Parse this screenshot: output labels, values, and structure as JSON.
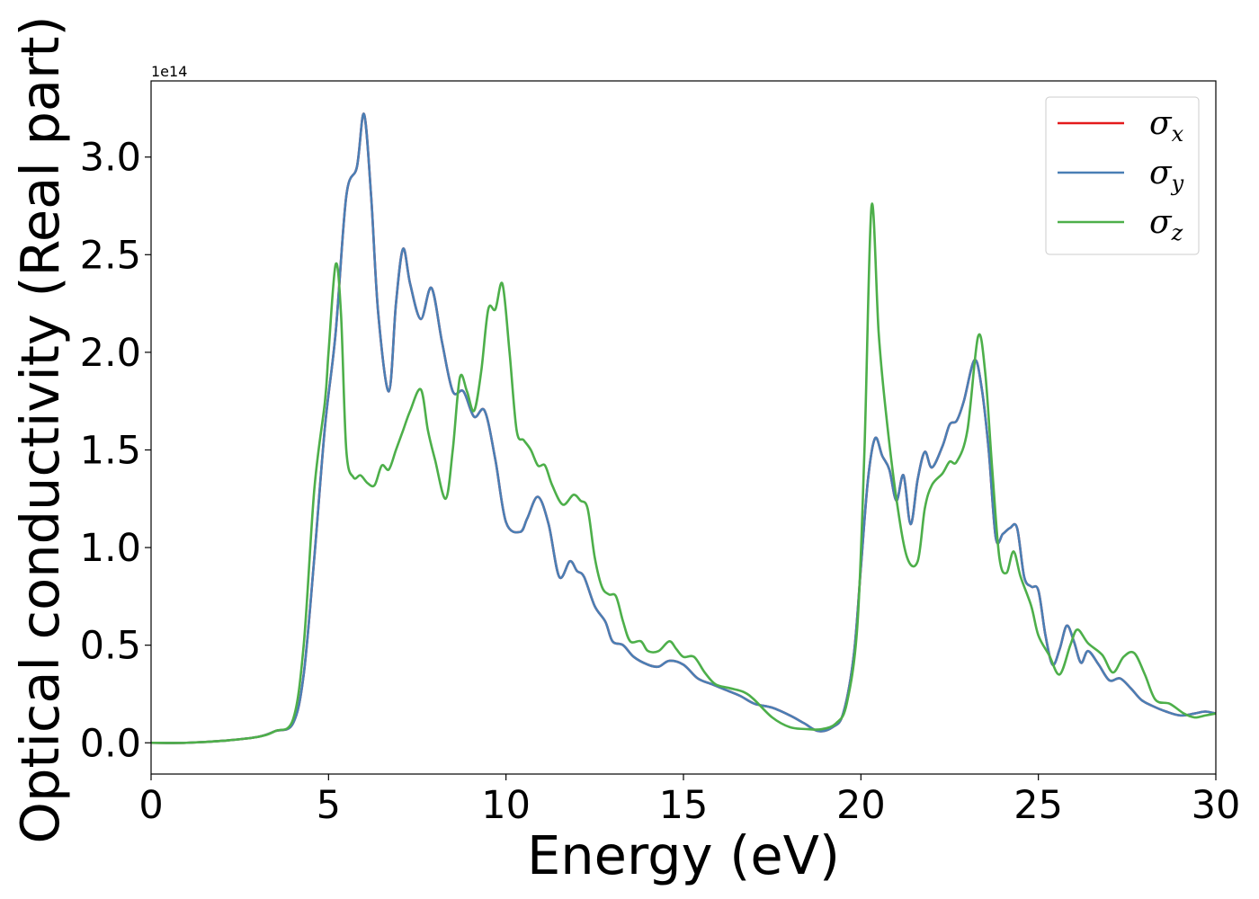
{
  "chart_data": {
    "type": "line",
    "xlabel": "Energy (eV)",
    "ylabel": "Optical conductivity (Real part)",
    "y_offset_label": "1e14",
    "xlim": [
      0,
      30
    ],
    "ylim": [
      -0.16,
      3.39
    ],
    "xticks": [
      0,
      5,
      10,
      15,
      20,
      25,
      30
    ],
    "xtick_labels": [
      "0",
      "5",
      "10",
      "15",
      "20",
      "25",
      "30"
    ],
    "yticks": [
      0.0,
      0.5,
      1.0,
      1.5,
      2.0,
      2.5,
      3.0
    ],
    "ytick_labels": [
      "0.0",
      "0.5",
      "1.0",
      "1.5",
      "2.0",
      "2.5",
      "3.0"
    ],
    "grid": false,
    "legend_position": "top-right",
    "series": [
      {
        "name": "σx",
        "symbol": "σ",
        "subscript": "x",
        "color": "#e41a1c",
        "x": [
          0,
          1,
          2,
          3,
          3.5,
          4,
          4.3,
          4.6,
          4.9,
          5.2,
          5.5,
          5.8,
          6.0,
          6.2,
          6.4,
          6.7,
          6.9,
          7.1,
          7.3,
          7.6,
          7.9,
          8.2,
          8.5,
          8.8,
          9.1,
          9.4,
          9.7,
          10.0,
          10.4,
          10.6,
          10.9,
          11.2,
          11.5,
          11.8,
          12.0,
          12.2,
          12.5,
          12.8,
          13.0,
          13.3,
          13.6,
          14.0,
          14.3,
          14.6,
          15.0,
          15.4,
          15.8,
          16.2,
          16.6,
          17.0,
          17.5,
          18.0,
          18.4,
          18.8,
          19.2,
          19.5,
          19.8,
          20.0,
          20.2,
          20.4,
          20.6,
          20.8,
          21.0,
          21.2,
          21.4,
          21.6,
          21.8,
          22.0,
          22.3,
          22.5,
          22.7,
          22.9,
          23.2,
          23.4,
          23.6,
          23.8,
          24.0,
          24.2,
          24.4,
          24.6,
          24.8,
          25.0,
          25.2,
          25.4,
          25.6,
          25.8,
          26.0,
          26.2,
          26.4,
          26.7,
          27.0,
          27.3,
          27.6,
          27.9,
          28.2,
          28.6,
          29.0,
          29.4,
          29.7,
          30.0
        ],
        "y": [
          0.0,
          0.0,
          0.01,
          0.03,
          0.06,
          0.1,
          0.35,
          0.95,
          1.62,
          2.1,
          2.8,
          2.95,
          3.22,
          2.8,
          2.2,
          1.8,
          2.25,
          2.53,
          2.35,
          2.17,
          2.33,
          2.05,
          1.8,
          1.8,
          1.67,
          1.7,
          1.45,
          1.13,
          1.08,
          1.15,
          1.26,
          1.12,
          0.85,
          0.93,
          0.88,
          0.85,
          0.7,
          0.62,
          0.52,
          0.5,
          0.44,
          0.4,
          0.39,
          0.42,
          0.4,
          0.33,
          0.3,
          0.27,
          0.24,
          0.2,
          0.18,
          0.14,
          0.1,
          0.06,
          0.08,
          0.15,
          0.45,
          0.9,
          1.35,
          1.56,
          1.47,
          1.4,
          1.24,
          1.37,
          1.12,
          1.35,
          1.49,
          1.41,
          1.52,
          1.63,
          1.65,
          1.75,
          1.96,
          1.82,
          1.5,
          1.05,
          1.07,
          1.1,
          1.1,
          0.85,
          0.8,
          0.78,
          0.55,
          0.4,
          0.48,
          0.6,
          0.52,
          0.41,
          0.47,
          0.4,
          0.32,
          0.33,
          0.28,
          0.22,
          0.19,
          0.16,
          0.14,
          0.15,
          0.16,
          0.15
        ]
      },
      {
        "name": "σy",
        "symbol": "σ",
        "subscript": "y",
        "color": "#4a7fb5",
        "x": [
          0,
          1,
          2,
          3,
          3.5,
          4,
          4.3,
          4.6,
          4.9,
          5.2,
          5.5,
          5.8,
          6.0,
          6.2,
          6.4,
          6.7,
          6.9,
          7.1,
          7.3,
          7.6,
          7.9,
          8.2,
          8.5,
          8.8,
          9.1,
          9.4,
          9.7,
          10.0,
          10.4,
          10.6,
          10.9,
          11.2,
          11.5,
          11.8,
          12.0,
          12.2,
          12.5,
          12.8,
          13.0,
          13.3,
          13.6,
          14.0,
          14.3,
          14.6,
          15.0,
          15.4,
          15.8,
          16.2,
          16.6,
          17.0,
          17.5,
          18.0,
          18.4,
          18.8,
          19.2,
          19.5,
          19.8,
          20.0,
          20.2,
          20.4,
          20.6,
          20.8,
          21.0,
          21.2,
          21.4,
          21.6,
          21.8,
          22.0,
          22.3,
          22.5,
          22.7,
          22.9,
          23.2,
          23.4,
          23.6,
          23.8,
          24.0,
          24.2,
          24.4,
          24.6,
          24.8,
          25.0,
          25.2,
          25.4,
          25.6,
          25.8,
          26.0,
          26.2,
          26.4,
          26.7,
          27.0,
          27.3,
          27.6,
          27.9,
          28.2,
          28.6,
          29.0,
          29.4,
          29.7,
          30.0
        ],
        "y": [
          0.0,
          0.0,
          0.01,
          0.03,
          0.06,
          0.1,
          0.35,
          0.95,
          1.62,
          2.1,
          2.8,
          2.95,
          3.22,
          2.8,
          2.2,
          1.8,
          2.25,
          2.53,
          2.35,
          2.17,
          2.33,
          2.05,
          1.8,
          1.8,
          1.67,
          1.7,
          1.45,
          1.13,
          1.08,
          1.15,
          1.26,
          1.12,
          0.85,
          0.93,
          0.88,
          0.85,
          0.7,
          0.62,
          0.52,
          0.5,
          0.44,
          0.4,
          0.39,
          0.42,
          0.4,
          0.33,
          0.3,
          0.27,
          0.24,
          0.2,
          0.18,
          0.14,
          0.1,
          0.06,
          0.08,
          0.15,
          0.45,
          0.9,
          1.35,
          1.56,
          1.47,
          1.4,
          1.24,
          1.37,
          1.12,
          1.35,
          1.49,
          1.41,
          1.52,
          1.63,
          1.65,
          1.75,
          1.96,
          1.82,
          1.5,
          1.05,
          1.07,
          1.1,
          1.1,
          0.85,
          0.8,
          0.78,
          0.55,
          0.4,
          0.48,
          0.6,
          0.52,
          0.41,
          0.47,
          0.4,
          0.32,
          0.33,
          0.28,
          0.22,
          0.19,
          0.16,
          0.14,
          0.15,
          0.16,
          0.15
        ]
      },
      {
        "name": "σz",
        "symbol": "σ",
        "subscript": "z",
        "color": "#4daf4a",
        "x": [
          0,
          1,
          2,
          3,
          3.5,
          4,
          4.3,
          4.6,
          4.9,
          5.0,
          5.2,
          5.35,
          5.5,
          5.7,
          5.9,
          6.1,
          6.3,
          6.5,
          6.7,
          6.9,
          7.1,
          7.3,
          7.6,
          7.8,
          8.0,
          8.3,
          8.5,
          8.7,
          8.9,
          9.1,
          9.3,
          9.5,
          9.7,
          9.9,
          10.1,
          10.3,
          10.5,
          10.7,
          10.9,
          11.1,
          11.3,
          11.6,
          11.9,
          12.1,
          12.3,
          12.5,
          12.7,
          12.9,
          13.1,
          13.3,
          13.5,
          13.8,
          14.0,
          14.3,
          14.6,
          14.8,
          15.0,
          15.3,
          15.6,
          15.9,
          16.3,
          16.7,
          17.0,
          17.5,
          18.0,
          18.5,
          18.9,
          19.3,
          19.6,
          19.9,
          20.1,
          20.3,
          20.5,
          20.7,
          21.0,
          21.3,
          21.6,
          21.8,
          22.0,
          22.3,
          22.5,
          22.7,
          23.0,
          23.3,
          23.5,
          23.7,
          23.9,
          24.1,
          24.3,
          24.5,
          24.8,
          25.0,
          25.3,
          25.6,
          25.9,
          26.1,
          26.4,
          26.8,
          27.1,
          27.4,
          27.7,
          28.0,
          28.3,
          28.7,
          29.1,
          29.4,
          29.7,
          30.0
        ],
        "y": [
          0.0,
          0.0,
          0.01,
          0.03,
          0.06,
          0.12,
          0.5,
          1.3,
          1.75,
          2.0,
          2.45,
          2.2,
          1.5,
          1.36,
          1.37,
          1.33,
          1.32,
          1.42,
          1.4,
          1.5,
          1.6,
          1.7,
          1.81,
          1.6,
          1.45,
          1.25,
          1.5,
          1.87,
          1.8,
          1.7,
          1.9,
          2.22,
          2.22,
          2.35,
          2.0,
          1.6,
          1.55,
          1.5,
          1.42,
          1.42,
          1.32,
          1.22,
          1.27,
          1.24,
          1.2,
          0.95,
          0.8,
          0.76,
          0.75,
          0.62,
          0.52,
          0.52,
          0.47,
          0.47,
          0.52,
          0.48,
          0.44,
          0.44,
          0.36,
          0.3,
          0.28,
          0.26,
          0.22,
          0.13,
          0.08,
          0.07,
          0.07,
          0.1,
          0.2,
          0.6,
          1.5,
          2.75,
          2.1,
          1.7,
          1.25,
          0.95,
          0.93,
          1.2,
          1.32,
          1.38,
          1.44,
          1.44,
          1.6,
          2.08,
          1.9,
          1.4,
          0.95,
          0.87,
          0.98,
          0.85,
          0.7,
          0.55,
          0.45,
          0.35,
          0.5,
          0.58,
          0.51,
          0.45,
          0.36,
          0.44,
          0.46,
          0.35,
          0.22,
          0.2,
          0.15,
          0.13,
          0.14,
          0.15
        ]
      }
    ]
  }
}
